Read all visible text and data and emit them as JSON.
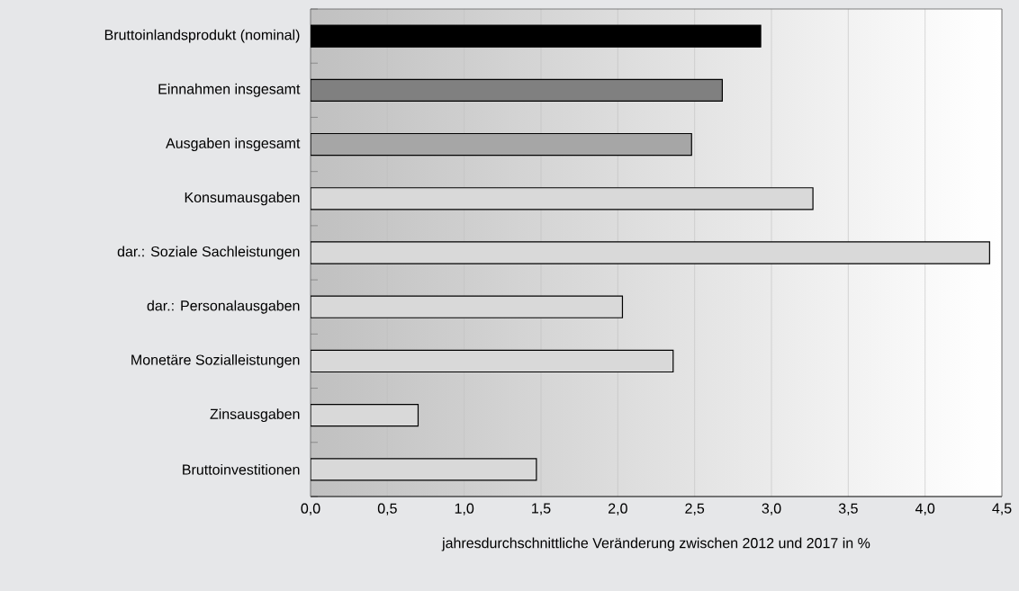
{
  "chart_data": {
    "type": "bar",
    "orientation": "horizontal",
    "xlabel": "jahresdurchschnittliche Veränderung zwischen 2012 und 2017 in %",
    "categories": [
      "Bruttoinlandsprodukt (nominal)",
      "Einnahmen insgesamt",
      "Ausgaben insgesamt",
      "Konsumausgaben",
      "dar.: Soziale Sachleistungen",
      "dar.: Personalausgaben",
      "Monetäre Sozialleistungen",
      "Zinsausgaben",
      "Bruttoinvestitionen"
    ],
    "values": [
      2.93,
      2.68,
      2.48,
      3.27,
      4.42,
      2.03,
      2.36,
      0.7,
      1.47
    ],
    "colors": [
      "#000000",
      "#808080",
      "#a6a6a6",
      "#d9d9d9",
      "#d9d9d9",
      "#d9d9d9",
      "#d9d9d9",
      "#d9d9d9",
      "#d9d9d9"
    ],
    "xlim": [
      0,
      4.5
    ],
    "xticks": [
      {
        "value": 0,
        "label": "0,0"
      },
      {
        "value": 0.5,
        "label": "0,5"
      },
      {
        "value": 1,
        "label": "1,0"
      },
      {
        "value": 1.5,
        "label": "1,5"
      },
      {
        "value": 2,
        "label": "2,0"
      },
      {
        "value": 2.5,
        "label": "2,5"
      },
      {
        "value": 3,
        "label": "3,0"
      },
      {
        "value": 3.5,
        "label": "3,5"
      },
      {
        "value": 4,
        "label": "4,0"
      },
      {
        "value": 4.5,
        "label": "4,5"
      }
    ],
    "grid": "x"
  }
}
